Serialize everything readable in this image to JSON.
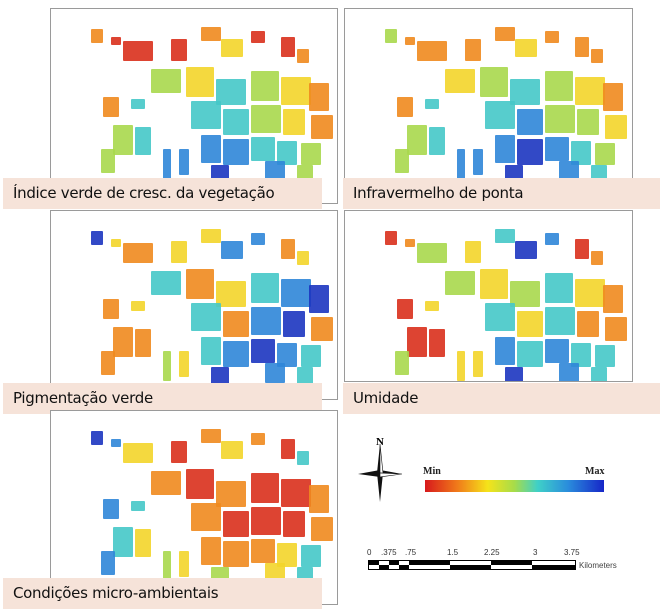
{
  "panels": [
    {
      "id": "p1",
      "label": "Índice verde de cresc. da vegetação"
    },
    {
      "id": "p2",
      "label": "Infravermelho de ponta"
    },
    {
      "id": "p3",
      "label": "Pigmentação verde"
    },
    {
      "id": "p4",
      "label": "Umidade"
    },
    {
      "id": "p5",
      "label": "Condições micro-ambientais"
    }
  ],
  "legend": {
    "north_label": "N",
    "min_label": "Min",
    "max_label": "Max",
    "ramp_colors": [
      "#d7191c",
      "#f07a1a",
      "#f5e31a",
      "#a6dc4a",
      "#3fd0c8",
      "#2a8cdc",
      "#1626c8"
    ],
    "scale_ticks": [
      "0",
      ".375",
      ".75",
      "1.5",
      "2.25",
      "3",
      "3.75"
    ],
    "scale_units": "Kilometers"
  },
  "colors": {
    "label_background": "#f6e3d9",
    "panel_border": "#9a9a9a"
  }
}
